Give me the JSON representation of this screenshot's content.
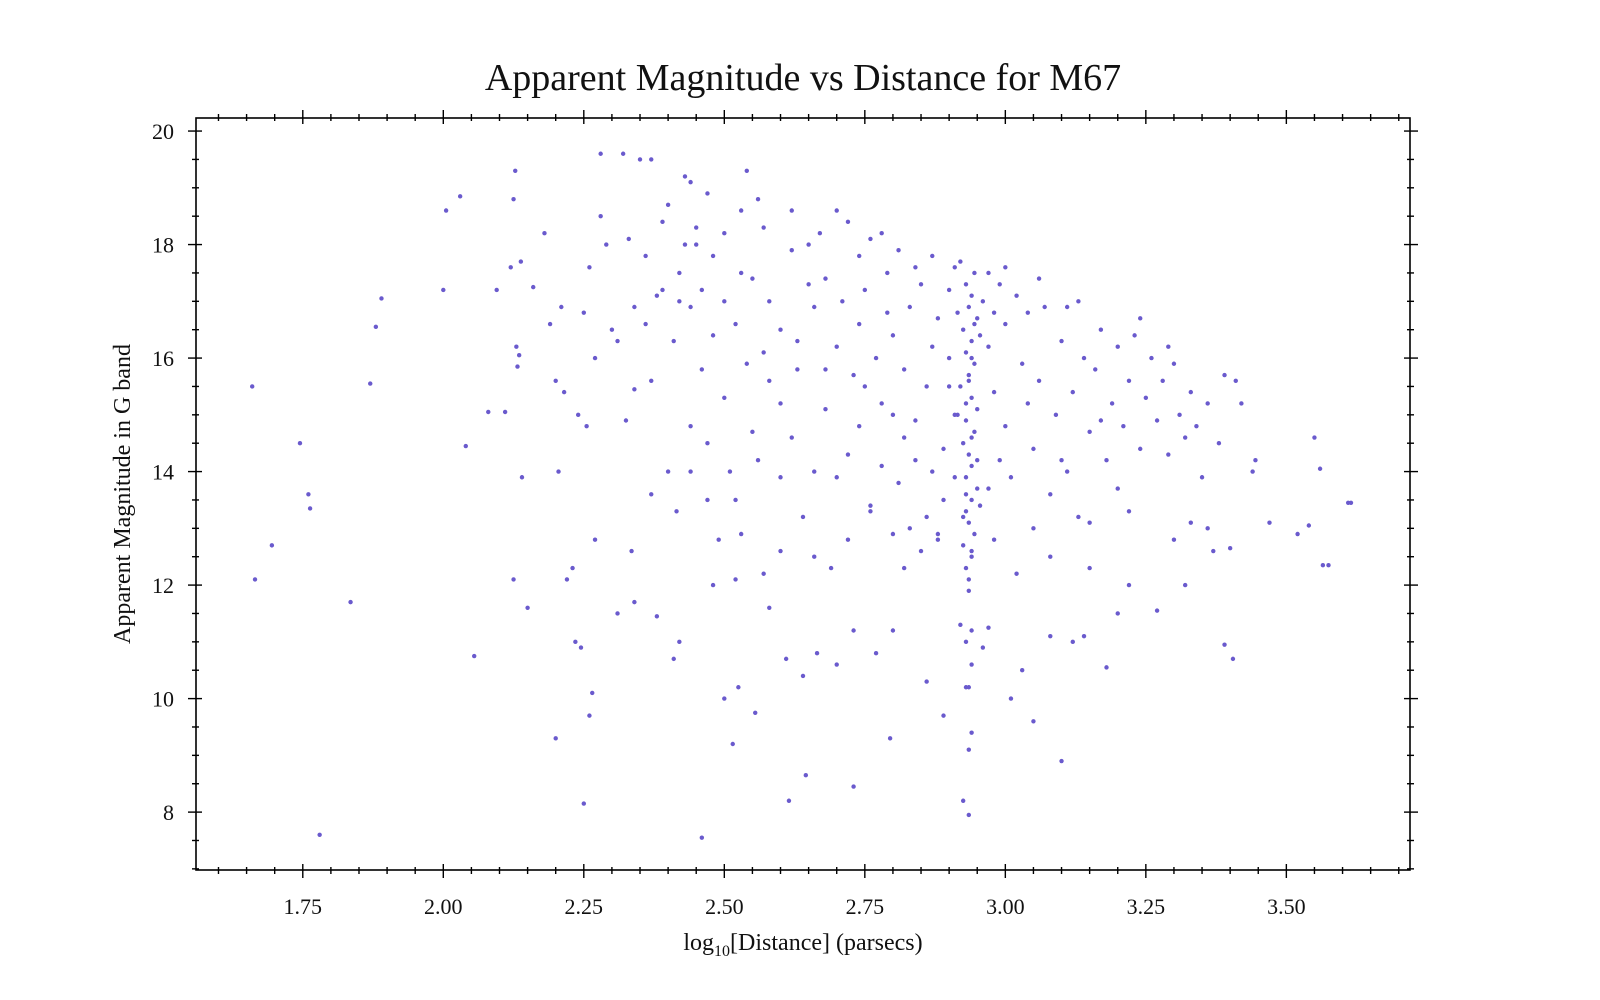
{
  "chart_data": {
    "type": "scatter",
    "title": "Apparent Magnitude vs Distance for M67",
    "xlabel": [
      "log",
      "10",
      "[Distance] (parsecs)"
    ],
    "ylabel": "Apparent Magnitude in G band",
    "color": "#6a5acd",
    "xlim": [
      1.56,
      3.72
    ],
    "ylim": [
      6.98,
      20.23
    ],
    "xticks": [
      1.75,
      {
        "value": 2,
        "label": "2.00"
      },
      2.25,
      {
        "value": 2.5,
        "label": "2.50"
      },
      2.75,
      {
        "value": 3,
        "label": "3.00"
      },
      3.25,
      {
        "value": 3.5,
        "label": "3.50"
      }
    ],
    "yticks": [
      8,
      10,
      12,
      14,
      16,
      18,
      20
    ],
    "xminorticks": [
      1.6,
      1.65,
      1.7,
      1.8,
      1.85,
      1.9,
      1.95,
      2.05,
      2.1,
      2.15,
      2.2,
      2.3,
      2.35,
      2.4,
      2.45,
      2.55,
      2.6,
      2.65,
      2.7,
      2.8,
      2.85,
      2.9,
      2.95,
      3.05,
      3.1,
      3.15,
      3.2,
      3.3,
      3.35,
      3.4,
      3.45,
      3.55,
      3.6,
      3.65,
      3.7
    ],
    "yminorticks": [
      7,
      7.5,
      8.5,
      9,
      9.5,
      10.5,
      11,
      11.5,
      12.5,
      13,
      13.5,
      14.5,
      15,
      15.5,
      16.5,
      17,
      17.5,
      18.5,
      19,
      19.5
    ],
    "x": [
      1.66,
      1.665,
      1.695,
      1.745,
      1.76,
      1.763,
      1.78,
      1.835,
      1.87,
      1.88,
      1.89,
      2.0,
      2.005,
      2.03,
      2.04,
      2.055,
      2.08,
      2.095,
      2.11,
      2.12,
      2.125,
      2.128,
      2.13,
      2.132,
      2.135,
      2.138,
      2.14,
      2.125,
      2.15,
      2.16,
      2.18,
      2.19,
      2.2,
      2.2,
      2.205,
      2.21,
      2.215,
      2.22,
      2.23,
      2.235,
      2.24,
      2.245,
      2.25,
      2.25,
      2.255,
      2.26,
      2.26,
      2.265,
      2.27,
      2.27,
      2.28,
      2.28,
      2.29,
      2.3,
      2.31,
      2.31,
      2.32,
      2.325,
      2.33,
      2.335,
      2.34,
      2.34,
      2.35,
      2.36,
      2.37,
      2.37,
      2.37,
      2.38,
      2.39,
      2.39,
      2.4,
      2.41,
      2.415,
      2.42,
      2.42,
      2.43,
      2.44,
      2.44,
      2.45,
      2.46,
      2.46,
      2.47,
      2.48,
      2.49,
      2.5,
      2.5,
      2.51,
      2.515,
      2.52,
      2.525,
      2.53,
      2.53,
      2.54,
      2.55,
      2.555,
      2.56,
      2.57,
      2.58,
      2.6,
      2.6,
      2.61,
      2.615,
      2.62,
      2.63,
      2.64,
      2.645,
      2.65,
      2.66,
      2.665,
      2.67,
      2.68,
      2.69,
      2.7,
      2.7,
      2.72,
      2.73,
      2.73,
      2.74,
      2.75,
      2.76,
      2.77,
      2.78,
      2.79,
      2.795,
      2.8,
      2.8,
      2.82,
      2.84,
      2.86,
      2.87,
      2.88,
      2.89,
      2.9,
      2.91,
      2.92,
      2.925,
      2.93,
      2.935,
      2.935,
      2.94,
      2.96,
      2.97,
      3.01,
      3.03,
      3.05,
      3.08,
      3.1,
      3.12,
      3.14,
      3.15,
      3.18,
      3.2,
      3.22,
      3.27,
      3.3,
      3.32,
      3.33,
      3.36,
      3.37,
      3.39,
      3.4,
      3.405,
      3.41,
      3.42,
      3.44,
      3.445,
      3.47,
      3.52,
      3.54,
      3.55,
      3.56,
      3.565,
      3.575,
      3.61,
      3.615,
      2.93,
      2.94,
      2.925,
      2.945,
      2.935,
      2.93,
      2.94,
      2.95,
      2.93,
      2.94,
      2.935,
      2.925,
      2.945,
      2.93,
      2.95,
      2.94,
      2.92,
      2.935,
      2.945,
      2.93,
      2.94,
      2.925,
      2.95,
      2.935,
      2.94,
      2.93,
      2.945,
      2.92,
      2.935,
      2.94,
      2.93,
      2.94,
      2.935,
      2.945,
      2.925,
      2.95,
      2.93,
      2.94,
      2.955,
      2.915,
      2.915,
      2.955,
      2.935,
      2.93,
      2.94,
      2.935,
      2.94,
      2.45,
      2.48,
      2.5,
      2.52,
      2.55,
      2.57,
      2.58,
      2.6,
      2.62,
      2.63,
      2.65,
      2.66,
      2.68,
      2.7,
      2.71,
      2.72,
      2.73,
      2.74,
      2.75,
      2.76,
      2.77,
      2.78,
      2.79,
      2.8,
      2.81,
      2.82,
      2.83,
      2.84,
      2.85,
      2.86,
      2.87,
      2.88,
      2.89,
      2.9,
      2.9,
      2.91,
      2.91,
      2.89,
      2.88,
      2.87,
      2.86,
      2.85,
      2.84,
      2.83,
      2.82,
      2.81,
      2.8,
      2.78,
      2.76,
      2.74,
      2.72,
      2.7,
      2.68,
      2.66,
      2.64,
      2.62,
      2.6,
      2.58,
      2.56,
      2.54,
      2.52,
      2.5,
      2.48,
      2.46,
      2.44,
      2.42,
      2.4,
      2.38,
      2.36,
      2.34,
      2.47,
      2.43,
      2.41,
      2.44,
      2.47,
      2.53,
      2.57,
      2.96,
      2.97,
      2.98,
      2.99,
      3.0,
      3.0,
      3.01,
      3.02,
      3.03,
      3.04,
      3.05,
      3.06,
      3.07,
      3.08,
      3.09,
      3.1,
      3.1,
      3.11,
      3.12,
      3.13,
      3.14,
      3.15,
      3.16,
      3.17,
      3.18,
      3.19,
      3.2,
      3.21,
      3.22,
      3.23,
      3.24,
      3.25,
      3.26,
      3.27,
      3.28,
      3.29,
      3.3,
      3.31,
      3.32,
      3.33,
      3.34,
      3.36,
      3.38,
      3.39,
      3.35,
      3.2,
      3.15,
      3.05,
      2.98,
      2.97,
      2.99,
      3.02,
      3.06,
      3.13,
      3.24,
      3.29,
      3.0,
      2.97,
      2.98,
      3.04,
      3.11,
      3.17,
      3.22,
      3.08
    ],
    "values": [
      15.5,
      12.1,
      12.7,
      14.5,
      13.6,
      13.35,
      7.6,
      11.7,
      15.55,
      16.55,
      17.05,
      17.2,
      18.6,
      18.85,
      14.45,
      10.75,
      15.05,
      17.2,
      15.05,
      17.6,
      18.8,
      19.3,
      16.2,
      15.85,
      16.05,
      17.7,
      13.9,
      12.1,
      11.6,
      17.25,
      18.2,
      16.6,
      15.6,
      9.3,
      14.0,
      16.9,
      15.4,
      12.1,
      12.3,
      11.0,
      15.0,
      10.9,
      16.8,
      8.15,
      14.8,
      17.6,
      9.7,
      10.1,
      12.8,
      16.0,
      18.5,
      19.6,
      18.0,
      16.5,
      16.3,
      11.5,
      19.6,
      14.9,
      18.1,
      12.6,
      15.45,
      11.7,
      19.5,
      17.8,
      19.5,
      15.6,
      13.6,
      11.45,
      17.2,
      18.4,
      14.0,
      10.7,
      13.3,
      17.0,
      11.0,
      19.2,
      19.1,
      14.0,
      18.0,
      17.2,
      7.55,
      14.5,
      12.0,
      12.8,
      17.0,
      10.0,
      14.0,
      9.2,
      12.1,
      10.2,
      18.6,
      17.5,
      19.3,
      14.7,
      9.75,
      18.8,
      16.1,
      11.6,
      15.2,
      13.9,
      10.7,
      8.2,
      18.6,
      16.3,
      10.4,
      8.65,
      17.3,
      12.5,
      10.8,
      18.2,
      15.8,
      12.3,
      10.6,
      18.6,
      14.3,
      8.45,
      11.2,
      17.8,
      15.5,
      13.3,
      10.8,
      18.2,
      16.8,
      9.3,
      12.9,
      11.2,
      14.6,
      17.6,
      10.3,
      16.2,
      12.8,
      9.7,
      15.5,
      13.9,
      11.3,
      8.2,
      10.2,
      7.95,
      9.1,
      11.2,
      10.9,
      11.25,
      10.0,
      10.5,
      9.6,
      11.1,
      8.9,
      11.0,
      11.1,
      12.3,
      10.55,
      11.5,
      12.0,
      11.55,
      12.8,
      12.0,
      13.1,
      13.0,
      12.6,
      10.95,
      12.65,
      10.7,
      15.6,
      15.2,
      14.0,
      14.2,
      13.1,
      12.9,
      13.05,
      14.6,
      14.05,
      12.35,
      12.35,
      13.45,
      13.45,
      12.3,
      12.5,
      12.7,
      12.9,
      13.1,
      13.3,
      13.5,
      13.7,
      13.9,
      14.1,
      14.3,
      14.5,
      14.7,
      14.9,
      15.1,
      15.3,
      15.5,
      15.7,
      15.9,
      16.1,
      16.3,
      16.5,
      16.7,
      16.9,
      17.1,
      17.3,
      17.5,
      17.7,
      12.1,
      12.6,
      13.6,
      14.6,
      15.6,
      16.6,
      13.2,
      14.2,
      15.2,
      16.0,
      16.4,
      15.0,
      16.8,
      13.4,
      11.9,
      11.0,
      10.6,
      10.2,
      9.4,
      18.3,
      17.8,
      18.2,
      16.6,
      17.4,
      18.3,
      17.0,
      16.5,
      17.9,
      15.8,
      18.0,
      16.9,
      17.4,
      16.2,
      17.0,
      18.4,
      15.7,
      16.6,
      17.2,
      18.1,
      16.0,
      15.2,
      17.5,
      16.4,
      17.9,
      15.8,
      16.9,
      14.9,
      17.3,
      15.5,
      17.8,
      16.7,
      14.4,
      17.2,
      16.0,
      15.0,
      17.6,
      13.5,
      12.9,
      14.0,
      13.2,
      12.6,
      14.2,
      13.0,
      12.3,
      13.8,
      15.0,
      14.1,
      13.4,
      14.8,
      12.8,
      13.9,
      15.1,
      14.0,
      13.2,
      14.6,
      12.6,
      15.6,
      14.2,
      15.9,
      13.5,
      15.3,
      16.4,
      15.8,
      16.9,
      17.5,
      18.7,
      17.1,
      16.6,
      16.9,
      18.9,
      18.0,
      16.3,
      14.8,
      13.5,
      12.9,
      12.2,
      17.0,
      16.2,
      15.4,
      17.3,
      16.6,
      14.8,
      13.9,
      17.1,
      15.9,
      16.8,
      14.4,
      15.6,
      16.9,
      13.6,
      15.0,
      16.3,
      14.2,
      16.9,
      15.4,
      13.2,
      16.0,
      14.7,
      15.8,
      16.5,
      14.2,
      15.2,
      16.2,
      14.8,
      15.6,
      16.4,
      14.4,
      15.3,
      16.0,
      14.9,
      15.6,
      14.3,
      15.9,
      15.0,
      14.6,
      15.4,
      14.8,
      15.2,
      14.5,
      15.7,
      13.9,
      13.7,
      13.1,
      13.0,
      12.8,
      13.7,
      14.2,
      12.2,
      17.4,
      17.0,
      16.7,
      16.2,
      17.6,
      17.5,
      16.8,
      15.2,
      14.0,
      14.9,
      13.3,
      12.5
    ]
  }
}
